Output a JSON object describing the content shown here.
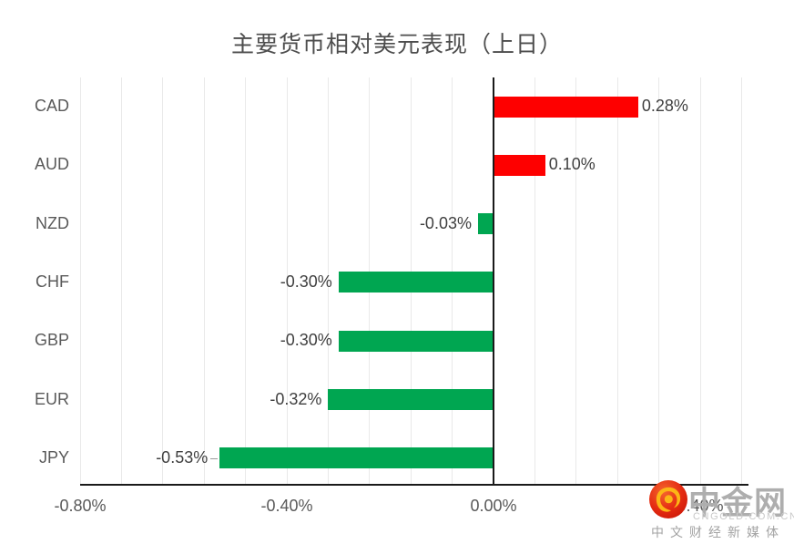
{
  "title": "主要货币相对美元表现（上日）",
  "chart_data": {
    "type": "bar",
    "orientation": "horizontal",
    "title": "主要货币相对美元表现（上日）",
    "categories": [
      "CAD",
      "AUD",
      "NZD",
      "CHF",
      "GBP",
      "EUR",
      "JPY"
    ],
    "values": [
      0.28,
      0.1,
      -0.03,
      -0.3,
      -0.3,
      -0.32,
      -0.53
    ],
    "value_labels": [
      "0.28%",
      "0.10%",
      "-0.03%",
      "-0.30%",
      "-0.30%",
      "-0.32%",
      "-0.53%"
    ],
    "label_leaders": [
      false,
      false,
      false,
      false,
      false,
      false,
      true
    ],
    "unit": "%",
    "xlabel": "",
    "ylabel": "",
    "xlim": [
      -0.8,
      0.48
    ],
    "grid": true,
    "grid_interval": 0.08,
    "legend_position": "none",
    "x_ticks": [
      {
        "value": -0.8,
        "label": "-0.80%"
      },
      {
        "value": -0.4,
        "label": "-0.40%"
      },
      {
        "value": 0.0,
        "label": "0.00%"
      },
      {
        "value": 0.4,
        "label": "0.40%"
      }
    ],
    "colors": {
      "positive_bar": "#fe0000",
      "negative_bar": "#00a651"
    }
  },
  "style": {
    "background": "#ffffff",
    "gridline_color": "#e9e9e9",
    "axis_color": "#1a1a1a",
    "title_color": "#4d4d4d",
    "value_label_color": "#3f3f3f",
    "category_label_color": "#595959",
    "tick_label_color": "#595959",
    "leader_line_color": "#9a9a9a"
  },
  "watermark": {
    "brand": "中金网",
    "url": "CNGOLD.COM.CN",
    "tagline": "中文财经新媒体",
    "logo_circle_color": "#e02912",
    "logo_swirl_color": "#fcb616",
    "text_color": "#aeaeae"
  }
}
